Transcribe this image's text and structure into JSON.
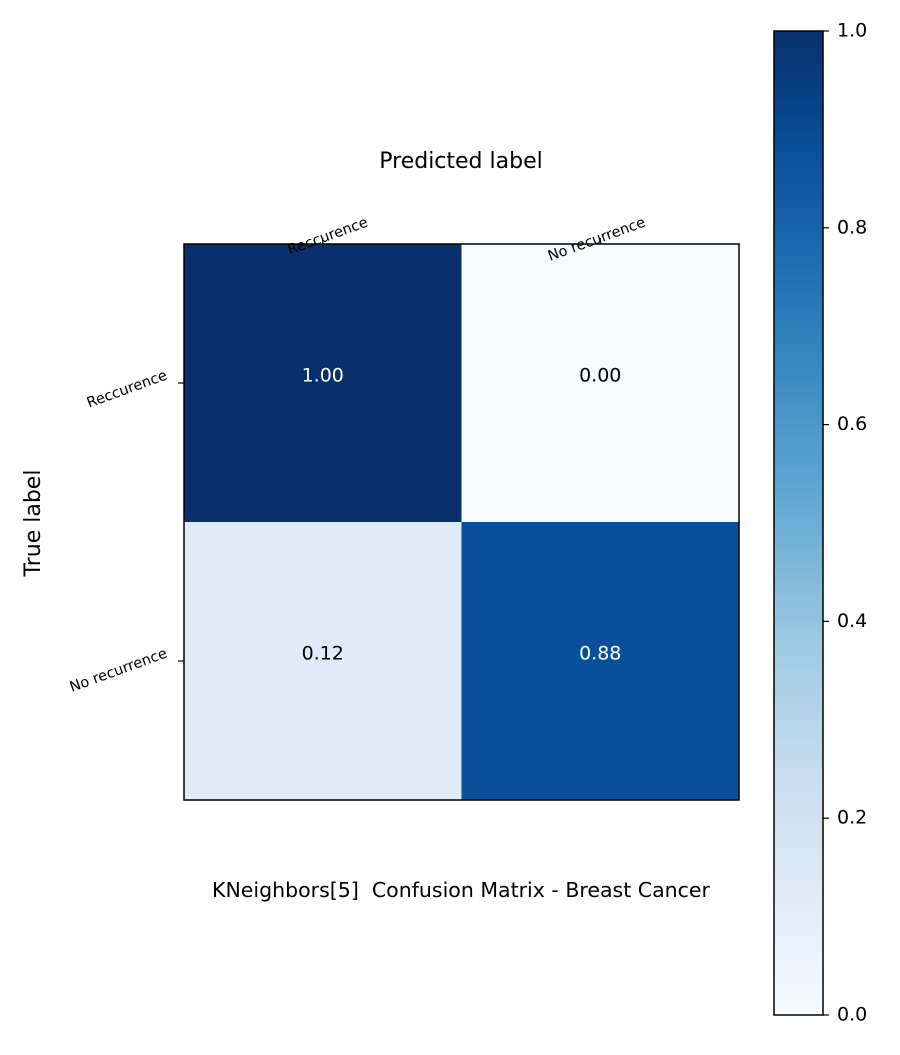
{
  "chart_data": {
    "type": "heatmap",
    "title": "KNeighbors[5]  Confusion Matrix - Breast Cancer",
    "xlabel": "Predicted label",
    "ylabel": "True label",
    "x_categories": [
      "Reccurence",
      "No recurrence"
    ],
    "y_categories": [
      "Reccurence",
      "No recurrence"
    ],
    "matrix": [
      [
        1.0,
        0.0
      ],
      [
        0.12,
        0.88
      ]
    ],
    "cell_labels": [
      [
        "1.00",
        "0.00"
      ],
      [
        "0.12",
        "0.88"
      ]
    ],
    "colormap": "Blues",
    "colorbar": {
      "range": [
        0.0,
        1.0
      ],
      "ticks": [
        "0.0",
        "0.2",
        "0.4",
        "0.6",
        "0.8",
        "1.0"
      ]
    },
    "x_ticks_position": "top",
    "grid": false
  }
}
